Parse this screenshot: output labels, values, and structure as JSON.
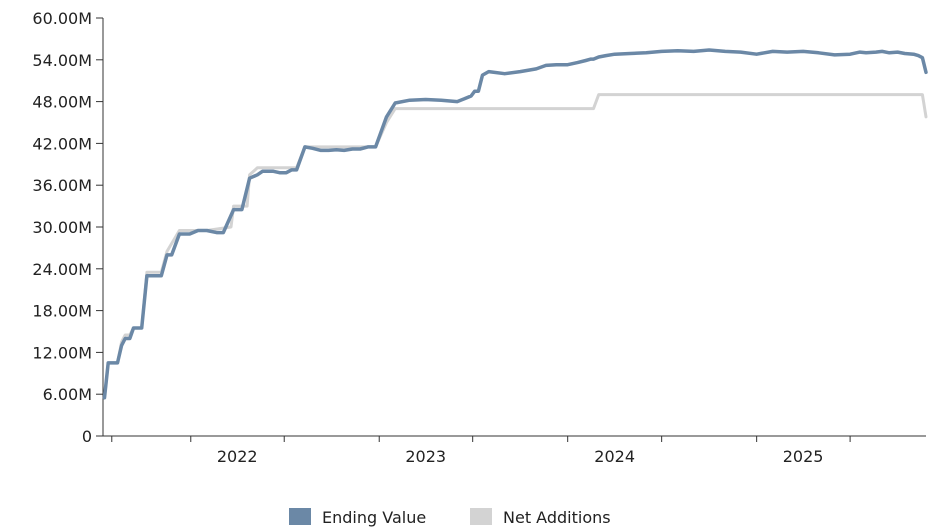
{
  "chart_data": {
    "type": "line",
    "title": "",
    "xlabel": "",
    "ylabel": "",
    "ylim": [
      0,
      60000000
    ],
    "xlim": [
      "2021-07-15",
      "2025-11-25"
    ],
    "yticks": [
      0,
      6000000,
      12000000,
      18000000,
      24000000,
      30000000,
      36000000,
      42000000,
      48000000,
      54000000,
      60000000
    ],
    "ytick_labels": [
      "0",
      "6.00M",
      "12.00M",
      "18.00M",
      "24.00M",
      "30.00M",
      "36.00M",
      "42.00M",
      "48.00M",
      "54.00M",
      "60.00M"
    ],
    "xticks": [
      "2021-08-01",
      "2022-01-01",
      "2022-07-01",
      "2023-01-01",
      "2023-07-01",
      "2024-01-01",
      "2024-07-01",
      "2025-01-01",
      "2025-07-01"
    ],
    "xlabels": [
      {
        "label": "2022",
        "at": "2022-04-01"
      },
      {
        "label": "2023",
        "at": "2023-04-01"
      },
      {
        "label": "2024",
        "at": "2024-04-01"
      },
      {
        "label": "2025",
        "at": "2025-04-01"
      }
    ],
    "grid": false,
    "legend_position": "bottom-center",
    "colors": {
      "ending_value": "#6b88a6",
      "net_additions": "#d3d3d3",
      "axis": "#333333"
    },
    "series": [
      {
        "name": "Ending Value",
        "color": "#6b88a6",
        "x": [
          "2021-07-18",
          "2021-07-25",
          "2021-08-12",
          "2021-08-20",
          "2021-08-27",
          "2021-09-05",
          "2021-09-12",
          "2021-09-28",
          "2021-10-08",
          "2021-10-18",
          "2021-11-05",
          "2021-11-16",
          "2021-11-25",
          "2021-12-10",
          "2021-12-20",
          "2021-12-30",
          "2022-01-15",
          "2022-02-01",
          "2022-02-20",
          "2022-03-05",
          "2022-03-25",
          "2022-04-10",
          "2022-04-25",
          "2022-05-10",
          "2022-05-20",
          "2022-06-10",
          "2022-06-22",
          "2022-07-05",
          "2022-07-15",
          "2022-07-25",
          "2022-08-10",
          "2022-08-25",
          "2022-09-10",
          "2022-09-25",
          "2022-10-10",
          "2022-10-25",
          "2022-11-10",
          "2022-11-25",
          "2022-12-10",
          "2022-12-25",
          "2023-01-15",
          "2023-02-01",
          "2023-03-01",
          "2023-04-01",
          "2023-05-01",
          "2023-06-01",
          "2023-06-15",
          "2023-06-28",
          "2023-07-05",
          "2023-07-12",
          "2023-07-20",
          "2023-08-01",
          "2023-09-01",
          "2023-10-01",
          "2023-11-01",
          "2023-11-20",
          "2023-12-10",
          "2024-01-01",
          "2024-01-20",
          "2024-02-05",
          "2024-02-15",
          "2024-02-20",
          "2024-03-01",
          "2024-03-15",
          "2024-04-01",
          "2024-05-01",
          "2024-06-01",
          "2024-07-01",
          "2024-08-01",
          "2024-09-01",
          "2024-10-01",
          "2024-11-01",
          "2024-12-01",
          "2025-01-01",
          "2025-02-01",
          "2025-03-01",
          "2025-04-01",
          "2025-05-01",
          "2025-06-01",
          "2025-07-01",
          "2025-07-20",
          "2025-08-01",
          "2025-08-20",
          "2025-09-01",
          "2025-09-15",
          "2025-10-01",
          "2025-10-15",
          "2025-11-01",
          "2025-11-10",
          "2025-11-18",
          "2025-11-25"
        ],
        "values": [
          5500000,
          10500000,
          10500000,
          13000000,
          14000000,
          14000000,
          15500000,
          15500000,
          23000000,
          23000000,
          23000000,
          26000000,
          26000000,
          29000000,
          29000000,
          29000000,
          29500000,
          29500000,
          29200000,
          29200000,
          32500000,
          32500000,
          37000000,
          37500000,
          38000000,
          38000000,
          37800000,
          37800000,
          38200000,
          38200000,
          41500000,
          41300000,
          41000000,
          41000000,
          41100000,
          41000000,
          41200000,
          41200000,
          41500000,
          41500000,
          45800000,
          47800000,
          48200000,
          48300000,
          48200000,
          48000000,
          48400000,
          48800000,
          49500000,
          49500000,
          51800000,
          52300000,
          52000000,
          52300000,
          52700000,
          53200000,
          53300000,
          53300000,
          53600000,
          53900000,
          54100000,
          54100000,
          54400000,
          54600000,
          54800000,
          54900000,
          55000000,
          55200000,
          55300000,
          55200000,
          55400000,
          55200000,
          55100000,
          54800000,
          55200000,
          55100000,
          55200000,
          55000000,
          54700000,
          54800000,
          55100000,
          55000000,
          55100000,
          55200000,
          55000000,
          55100000,
          54900000,
          54800000,
          54600000,
          54300000,
          52200000
        ]
      },
      {
        "name": "Net Additions",
        "color": "#d3d3d3",
        "x": [
          "2021-07-18",
          "2021-07-25",
          "2021-08-12",
          "2021-08-20",
          "2021-08-27",
          "2021-09-05",
          "2021-09-12",
          "2021-09-28",
          "2021-10-08",
          "2021-11-05",
          "2021-11-16",
          "2021-12-10",
          "2022-02-01",
          "2022-03-20",
          "2022-03-25",
          "2022-04-20",
          "2022-04-25",
          "2022-05-10",
          "2022-06-22",
          "2022-07-05",
          "2022-07-25",
          "2022-08-10",
          "2022-12-10",
          "2022-12-25",
          "2023-01-15",
          "2023-02-01",
          "2024-02-20",
          "2024-03-01",
          "2025-11-18",
          "2025-11-25"
        ],
        "values": [
          5500000,
          10500000,
          10500000,
          13500000,
          14500000,
          14500000,
          15500000,
          15500000,
          23500000,
          23500000,
          26500000,
          29500000,
          29500000,
          30000000,
          33000000,
          33000000,
          37500000,
          38500000,
          38500000,
          38500000,
          38500000,
          41500000,
          41500000,
          41500000,
          45000000,
          47000000,
          47000000,
          49000000,
          49000000,
          45800000
        ]
      }
    ]
  }
}
